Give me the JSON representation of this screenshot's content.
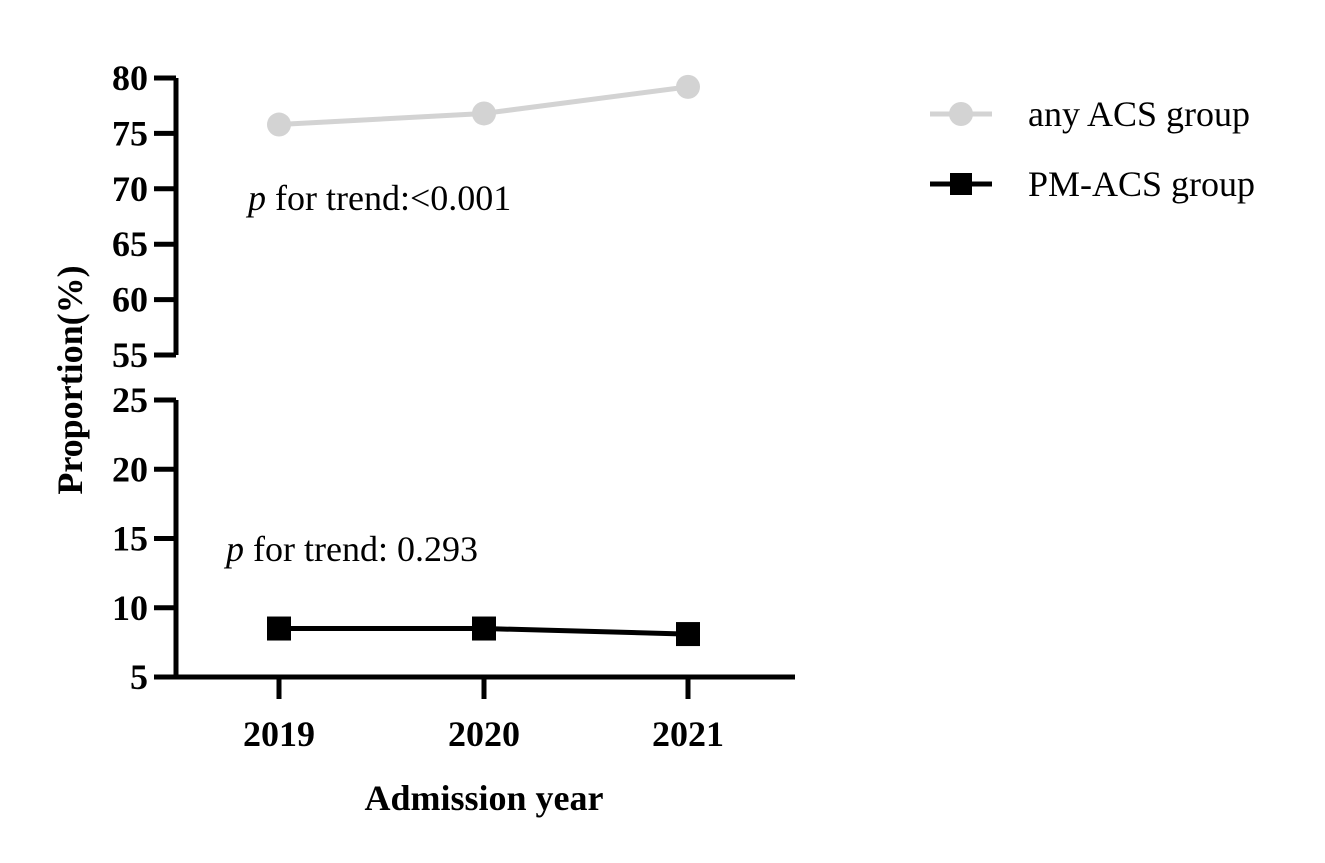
{
  "chart_data": {
    "type": "line",
    "categories": [
      "2019",
      "2020",
      "2021"
    ],
    "xlabel": "Admission year",
    "ylabel": "Proportion(%)",
    "y_axis_broken": true,
    "y_upper_segment": {
      "ylim": [
        55,
        80
      ],
      "ticks": [
        "55",
        "60",
        "65",
        "70",
        "75",
        "80"
      ]
    },
    "y_lower_segment": {
      "ylim": [
        5,
        25
      ],
      "ticks": [
        "5",
        "10",
        "15",
        "20",
        "25"
      ]
    },
    "series": [
      {
        "name": "any ACS group",
        "values": [
          75.8,
          76.8,
          79.2
        ],
        "color": "#d3d3d3",
        "marker": "circle"
      },
      {
        "name": "PM-ACS group",
        "values": [
          8.5,
          8.5,
          8.1
        ],
        "color": "#000000",
        "marker": "square"
      }
    ],
    "annotations": [
      {
        "italic": "p",
        "text": " for trend:<0.001"
      },
      {
        "italic": "p",
        "text": " for trend: 0.293"
      }
    ],
    "legend_position": "top-right",
    "grid": false
  }
}
